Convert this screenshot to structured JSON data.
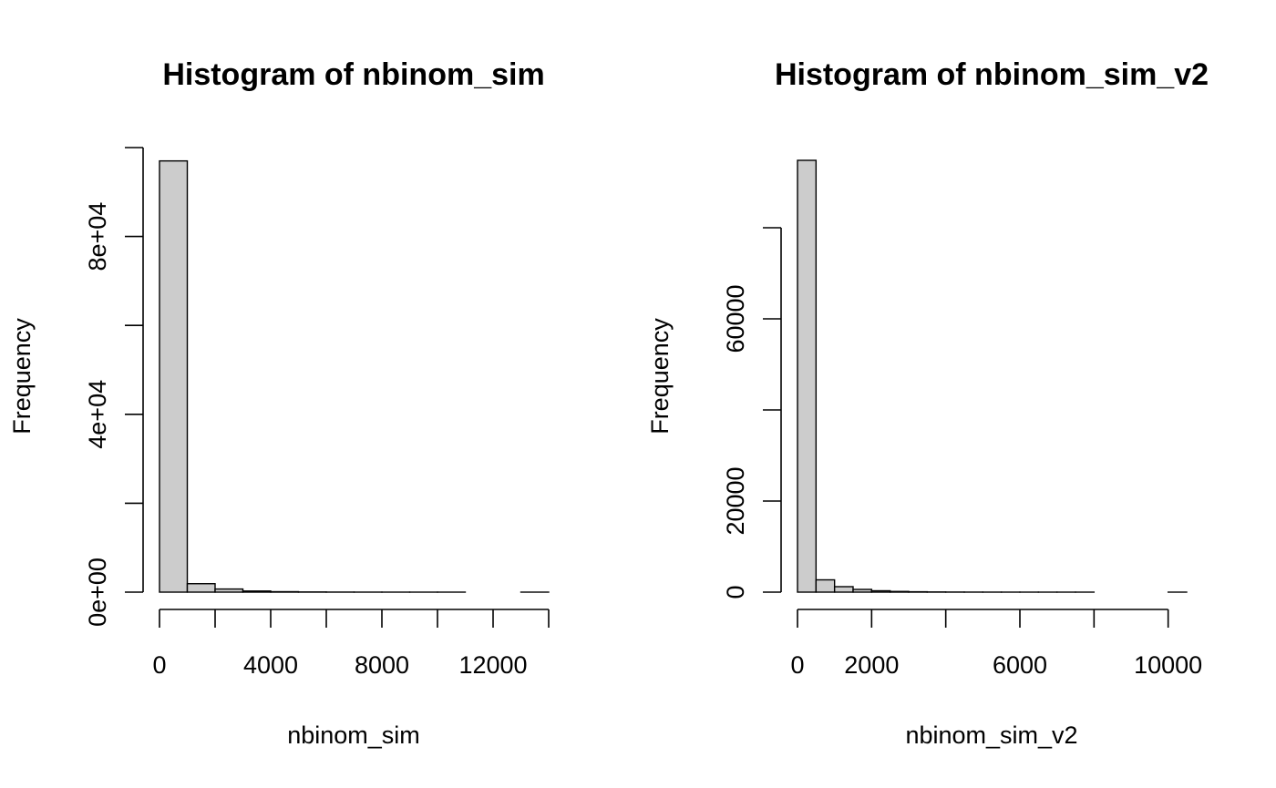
{
  "chart_data": [
    {
      "type": "bar",
      "title": "Histogram of nbinom_sim",
      "xlabel": "nbinom_sim",
      "ylabel": "Frequency",
      "bin_edges": [
        0,
        1000,
        2000,
        3000,
        4000,
        5000,
        6000,
        7000,
        8000,
        9000,
        10000,
        11000,
        12000,
        13000,
        14000
      ],
      "values": [
        97000,
        1900,
        700,
        250,
        100,
        40,
        15,
        5,
        2,
        1,
        1,
        0,
        0,
        1
      ],
      "xlim": [
        0,
        14000
      ],
      "ylim": [
        0,
        100000
      ],
      "x_ticks": [
        0,
        2000,
        4000,
        6000,
        8000,
        10000,
        12000,
        14000
      ],
      "x_tick_labels": [
        {
          "value": 0,
          "label": "0"
        },
        {
          "value": 4000,
          "label": "4000"
        },
        {
          "value": 8000,
          "label": "8000"
        },
        {
          "value": 12000,
          "label": "12000"
        }
      ],
      "y_ticks": [
        0,
        20000,
        40000,
        60000,
        80000,
        100000
      ],
      "y_tick_labels": [
        {
          "value": 0,
          "label": "0e+00"
        },
        {
          "value": 40000,
          "label": "4e+04"
        },
        {
          "value": 80000,
          "label": "8e+04"
        }
      ],
      "grid": false,
      "bar_color": "#cccccc"
    },
    {
      "type": "bar",
      "title": "Histogram of nbinom_sim_v2",
      "xlabel": "nbinom_sim_v2",
      "ylabel": "Frequency",
      "bin_edges": [
        0,
        500,
        1000,
        1500,
        2000,
        2500,
        3000,
        3500,
        4000,
        4500,
        5000,
        5500,
        6000,
        6500,
        7000,
        7500,
        8000,
        8500,
        9000,
        9500,
        10000,
        10500
      ],
      "values": [
        94800,
        2700,
        1200,
        600,
        300,
        150,
        80,
        40,
        20,
        10,
        5,
        3,
        2,
        1,
        1,
        1,
        0,
        0,
        0,
        0,
        1
      ],
      "xlim": [
        0,
        10500
      ],
      "ylim": [
        0,
        80000
      ],
      "x_ticks": [
        0,
        2000,
        4000,
        6000,
        8000,
        10000
      ],
      "x_tick_labels": [
        {
          "value": 0,
          "label": "0"
        },
        {
          "value": 2000,
          "label": "2000"
        },
        {
          "value": 6000,
          "label": "6000"
        },
        {
          "value": 10000,
          "label": "10000"
        }
      ],
      "y_ticks": [
        0,
        20000,
        40000,
        60000,
        80000
      ],
      "y_tick_labels": [
        {
          "value": 0,
          "label": "0"
        },
        {
          "value": 20000,
          "label": "20000"
        },
        {
          "value": 60000,
          "label": "60000"
        }
      ],
      "grid": false,
      "bar_color": "#cccccc"
    }
  ]
}
